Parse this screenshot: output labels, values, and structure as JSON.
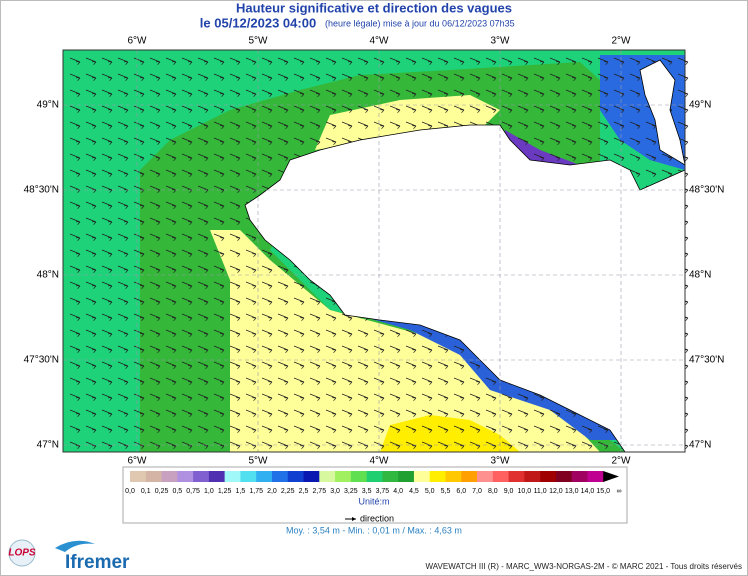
{
  "header": {
    "title": "Hauteur significative et direction des vagues",
    "date": "le 05/12/2023 04:00",
    "note": "(heure légale) mise à jour du 06/12/2023 07h35"
  },
  "map": {
    "lon_ticks": [
      {
        "value": -6,
        "label": "6°W"
      },
      {
        "value": -5,
        "label": "5°W"
      },
      {
        "value": -4,
        "label": "4°W"
      },
      {
        "value": -3,
        "label": "3°W"
      },
      {
        "value": -2,
        "label": "2°W"
      }
    ],
    "lat_ticks": [
      {
        "value": 49,
        "label": "49°N"
      },
      {
        "value": 48.5,
        "label": "48°30'N"
      },
      {
        "value": 48,
        "label": "48°N"
      },
      {
        "value": 47.5,
        "label": "47°30'N"
      },
      {
        "value": 47,
        "label": "47°N"
      }
    ]
  },
  "legend": {
    "labels": [
      "0,0",
      "0,1",
      "0,25",
      "0,5",
      "0,75",
      "1,0",
      "1,25",
      "1,5",
      "1,75",
      "2,0",
      "2,25",
      "2,5",
      "2,75",
      "3,0",
      "3,25",
      "3,5",
      "3,75",
      "4,0",
      "4,5",
      "5,0",
      "5,5",
      "6,0",
      "7,0",
      "8,0",
      "9,0",
      "10,0",
      "11,0",
      "12,0",
      "13,0",
      "14,0",
      "15,0",
      "∞"
    ],
    "colors": [
      "#e0c8b0",
      "#d4b4a4",
      "#c8a0c0",
      "#b090e0",
      "#8060d0",
      "#5030b0",
      "#a0f8f8",
      "#50e0f0",
      "#30b0f0",
      "#2070e8",
      "#1040d0",
      "#0818b0",
      "#d8f8a0",
      "#a0f060",
      "#60e050",
      "#20d070",
      "#30b840",
      "#20a030",
      "#ffff99",
      "#ffee00",
      "#ffc800",
      "#ffa000",
      "#ff9090",
      "#ff6060",
      "#e03030",
      "#c01818",
      "#a00000",
      "#800020",
      "#a00060",
      "#c00090",
      "#000000"
    ],
    "unit": "Unité:m",
    "direction": "direction"
  },
  "stats": "Moy. : 3,54 m   -   Min. : 0,01 m / Max. : 4,63 m",
  "logos": {
    "lops": "LOPS",
    "ifremer": "Ifremer"
  },
  "footer": "WAVEWATCH III (R) - MARC_WW3-NORGAS-2M - © MARC 2021 - Tous droits réservés"
}
